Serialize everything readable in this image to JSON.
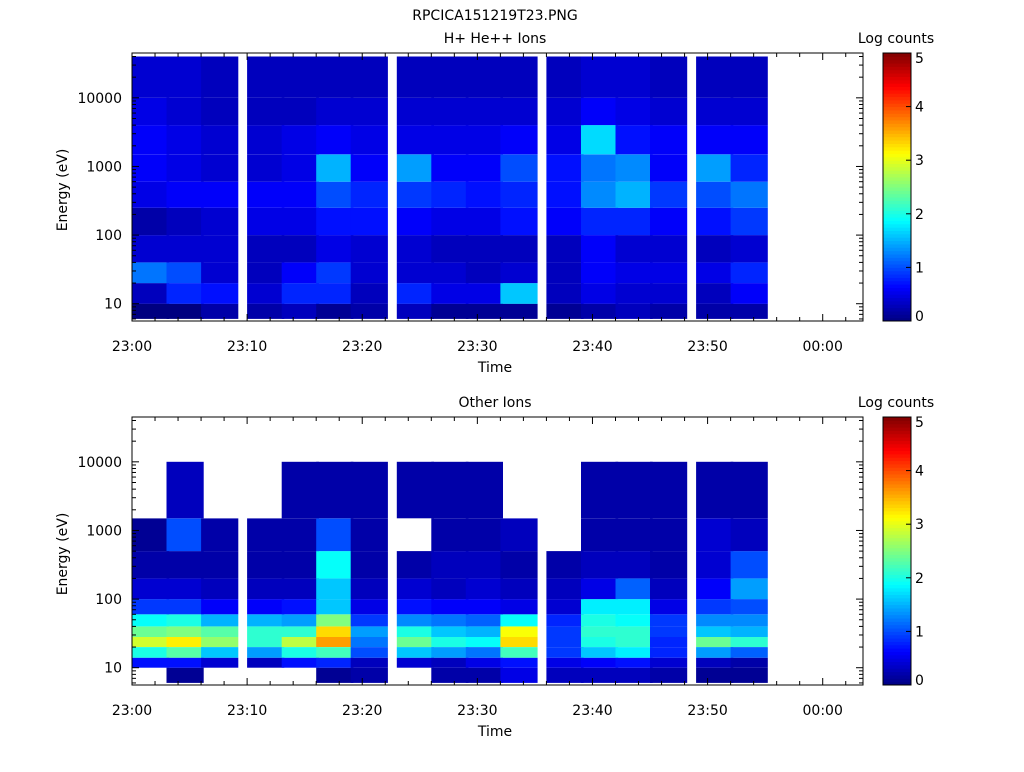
{
  "figure_title": "RPCICA151219T23.PNG",
  "chart_data": [
    {
      "type": "heatmap",
      "title": "H+ He++ Ions",
      "xlabel": "Time",
      "ylabel": "Energy (eV)",
      "x_ticks": [
        "23:00",
        "23:10",
        "23:20",
        "23:30",
        "23:40",
        "23:50",
        "00:00"
      ],
      "y_scale": "log",
      "y_ticks": [
        "10",
        "100",
        "1000",
        "10000"
      ],
      "ylim": [
        5.6,
        45000
      ],
      "colorbar": {
        "label": "Log counts",
        "range": [
          0,
          5
        ],
        "ticks": [
          "0",
          "1",
          "2",
          "3",
          "4",
          "5"
        ],
        "colormap": "jet"
      },
      "time_bins": [
        "23:00",
        "23:03",
        "23:06",
        "23:10",
        "23:13",
        "23:16",
        "23:19",
        "23:23",
        "23:26",
        "23:29",
        "23:32",
        "23:36",
        "23:39",
        "23:42",
        "23:45",
        "23:49",
        "23:52"
      ],
      "energy_bins_eV": [
        6,
        10,
        20,
        40,
        100,
        250,
        600,
        1500,
        4000,
        10000,
        40000
      ],
      "log_counts": [
        [
          0.0,
          0.3,
          1.2,
          0.4,
          0.2,
          0.5,
          0.6,
          0.6,
          0.5,
          0.4
        ],
        [
          0.0,
          0.8,
          1.0,
          0.4,
          0.3,
          0.6,
          0.5,
          0.5,
          0.4,
          0.4
        ],
        [
          0.2,
          0.7,
          0.4,
          0.4,
          0.4,
          0.6,
          0.4,
          0.4,
          0.3,
          0.3
        ],
        [
          0.2,
          0.4,
          0.3,
          0.3,
          0.5,
          0.6,
          0.4,
          0.4,
          0.3,
          0.3
        ],
        [
          0.3,
          0.8,
          0.6,
          0.3,
          0.5,
          0.6,
          0.5,
          0.5,
          0.3,
          0.3
        ],
        [
          0.1,
          0.8,
          0.9,
          0.5,
          0.7,
          1.0,
          1.5,
          0.6,
          0.4,
          0.3
        ],
        [
          0.2,
          0.3,
          0.4,
          0.4,
          0.7,
          0.8,
          0.6,
          0.5,
          0.4,
          0.3
        ],
        [
          0.3,
          0.8,
          0.4,
          0.4,
          0.6,
          0.9,
          1.4,
          0.5,
          0.4,
          0.3
        ],
        [
          0.1,
          0.5,
          0.4,
          0.3,
          0.5,
          0.8,
          0.6,
          0.5,
          0.4,
          0.3
        ],
        [
          0.1,
          0.5,
          0.3,
          0.3,
          0.5,
          0.7,
          0.6,
          0.5,
          0.4,
          0.3
        ],
        [
          0.1,
          1.6,
          0.4,
          0.3,
          0.7,
          0.8,
          1.0,
          0.6,
          0.4,
          0.3
        ],
        [
          0.1,
          0.3,
          0.3,
          0.3,
          0.6,
          0.7,
          0.7,
          0.5,
          0.4,
          0.3
        ],
        [
          0.2,
          0.5,
          0.6,
          0.6,
          0.8,
          1.3,
          1.2,
          1.7,
          0.6,
          0.4
        ],
        [
          0.3,
          0.4,
          0.5,
          0.4,
          0.8,
          1.5,
          1.3,
          0.7,
          0.5,
          0.4
        ],
        [
          0.2,
          0.4,
          0.5,
          0.4,
          0.6,
          0.9,
          0.6,
          0.6,
          0.4,
          0.3
        ],
        [
          0.2,
          0.3,
          0.5,
          0.3,
          0.7,
          1.0,
          1.4,
          0.6,
          0.4,
          0.3
        ],
        [
          0.2,
          0.6,
          0.8,
          0.4,
          0.9,
          1.2,
          0.8,
          0.6,
          0.4,
          0.3
        ]
      ]
    },
    {
      "type": "heatmap",
      "title": "Other Ions",
      "xlabel": "Time",
      "ylabel": "Energy (eV)",
      "x_ticks": [
        "23:00",
        "23:10",
        "23:20",
        "23:30",
        "23:40",
        "23:50",
        "00:00"
      ],
      "y_scale": "log",
      "y_ticks": [
        "10",
        "100",
        "1000",
        "10000"
      ],
      "ylim": [
        5.6,
        45000
      ],
      "colorbar": {
        "label": "Log counts",
        "range": [
          0,
          5
        ],
        "ticks": [
          "0",
          "1",
          "2",
          "3",
          "4",
          "5"
        ],
        "colormap": "jet"
      },
      "time_bins": [
        "23:00",
        "23:03",
        "23:06",
        "23:10",
        "23:13",
        "23:16",
        "23:19",
        "23:23",
        "23:26",
        "23:29",
        "23:32",
        "23:36",
        "23:39",
        "23:42",
        "23:45",
        "23:49",
        "23:52"
      ],
      "energy_bins_eV": [
        6,
        10,
        14,
        20,
        28,
        40,
        60,
        100,
        200,
        500,
        1500,
        10000
      ],
      "log_counts": [
        [
          null,
          0.7,
          2.0,
          2.9,
          2.4,
          1.9,
          0.9,
          0.4,
          0.2,
          0.1,
          null
        ],
        [
          0.1,
          0.7,
          2.3,
          3.2,
          2.5,
          2.0,
          0.9,
          0.4,
          0.2,
          1.0,
          0.3
        ],
        [
          null,
          0.4,
          1.6,
          2.6,
          2.3,
          1.5,
          0.6,
          0.3,
          0.2,
          0.2,
          null
        ],
        [
          null,
          0.3,
          1.4,
          2.1,
          2.1,
          1.5,
          0.6,
          0.3,
          0.2,
          0.2,
          null
        ],
        [
          null,
          0.7,
          2.0,
          2.8,
          2.1,
          1.4,
          0.7,
          0.3,
          0.2,
          0.2,
          0.2
        ],
        [
          0.1,
          0.8,
          2.2,
          3.6,
          3.3,
          2.5,
          1.6,
          1.6,
          1.9,
          1.0,
          0.2
        ],
        [
          0.2,
          0.3,
          1.0,
          1.2,
          1.4,
          0.9,
          0.5,
          0.3,
          0.2,
          0.2,
          0.2
        ],
        [
          null,
          0.4,
          1.6,
          2.4,
          2.0,
          1.3,
          0.7,
          0.4,
          0.2,
          null,
          0.2
        ],
        [
          0.2,
          0.3,
          1.4,
          2.0,
          1.6,
          1.2,
          0.6,
          0.3,
          0.3,
          0.2,
          0.2
        ],
        [
          0.2,
          0.5,
          1.2,
          1.9,
          1.5,
          1.1,
          0.6,
          0.4,
          0.3,
          0.2,
          0.2
        ],
        [
          0.5,
          0.7,
          2.2,
          3.3,
          3.1,
          1.9,
          0.5,
          0.3,
          0.2,
          0.3,
          null
        ],
        [
          0.3,
          0.5,
          0.9,
          0.9,
          0.9,
          0.8,
          0.4,
          0.3,
          0.2,
          null,
          null
        ],
        [
          0.3,
          0.6,
          1.6,
          2.0,
          2.1,
          2.0,
          1.8,
          0.5,
          0.3,
          0.2,
          0.2
        ],
        [
          0.3,
          0.7,
          1.8,
          2.1,
          2.1,
          1.9,
          1.8,
          1.1,
          0.3,
          0.2,
          0.2
        ],
        [
          0.2,
          0.4,
          0.8,
          0.8,
          0.9,
          0.9,
          0.5,
          0.3,
          0.2,
          0.2,
          0.2
        ],
        [
          0.1,
          0.3,
          1.4,
          2.4,
          1.6,
          1.3,
          0.9,
          0.6,
          0.4,
          0.4,
          0.2
        ],
        [
          0.1,
          0.2,
          1.1,
          2.1,
          1.5,
          1.3,
          1.0,
          1.4,
          1.0,
          0.3,
          0.2
        ]
      ]
    }
  ]
}
